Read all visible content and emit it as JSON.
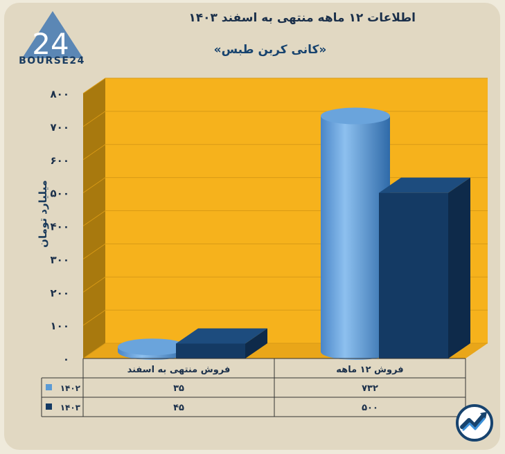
{
  "header": {
    "title": "اطلاعات ۱۲ ماهه منتهی به اسفند ۱۴۰۳",
    "subtitle": "«کانی کربن طبس»"
  },
  "logo": {
    "text": "BOURSE24",
    "mark": "24"
  },
  "colors": {
    "background": "#e1d8c2",
    "plot_back": "#f6b21c",
    "plot_side": "#a8790e",
    "plot_floor": "#e9a619",
    "series_1402": "#5b9bd5",
    "series_1403": "#143a64"
  },
  "chart_data": {
    "type": "bar",
    "categories": [
      "فروش منتهی به  اسفند",
      "فروش ۱۲  ماهه"
    ],
    "series": [
      {
        "name": "۱۴۰۲",
        "values": [
          35,
          732
        ],
        "shape": "cylinder",
        "value_labels": [
          "۳۵",
          "۷۳۲"
        ]
      },
      {
        "name": "۱۴۰۳",
        "values": [
          45,
          500
        ],
        "shape": "box",
        "value_labels": [
          "۴۵",
          "۵۰۰"
        ]
      }
    ],
    "ylabel": "میلیارد تومان",
    "ylim": [
      0,
      800
    ],
    "yticks": [
      0,
      100,
      200,
      300,
      400,
      500,
      600,
      700,
      800
    ],
    "ytick_labels": [
      "۰",
      "۱۰۰",
      "۲۰۰",
      "۳۰۰",
      "۴۰۰",
      "۵۰۰",
      "۶۰۰",
      "۷۰۰",
      "۸۰۰"
    ],
    "grid": true,
    "legend": "data-table"
  }
}
